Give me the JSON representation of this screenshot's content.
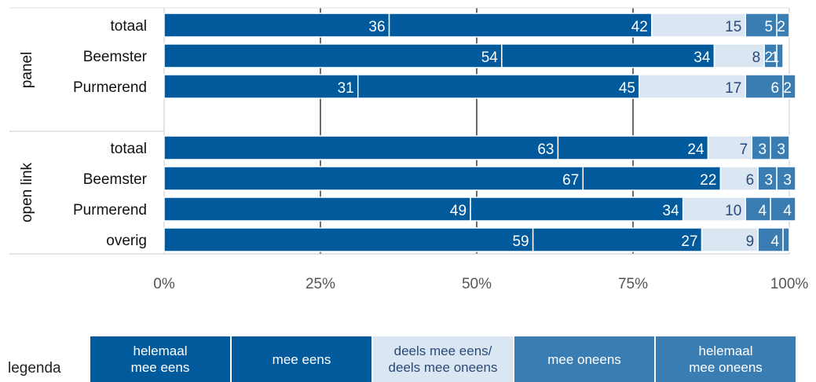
{
  "chart_data": {
    "type": "bar",
    "orientation": "horizontal",
    "stacked": true,
    "groups": [
      {
        "label": "panel",
        "categories": [
          "totaal",
          "Beemster",
          "Purmerend"
        ]
      },
      {
        "label": "open link",
        "categories": [
          "totaal",
          "Beemster",
          "Purmerend",
          "overig"
        ]
      }
    ],
    "rows": [
      {
        "group": "panel",
        "category": "totaal",
        "values": [
          36,
          42,
          15,
          5,
          2
        ]
      },
      {
        "group": "panel",
        "category": "Beemster",
        "values": [
          54,
          34,
          8,
          2,
          1
        ]
      },
      {
        "group": "panel",
        "category": "Purmerend",
        "values": [
          31,
          45,
          17,
          6,
          2
        ]
      },
      {
        "group": "open link",
        "category": "totaal",
        "values": [
          63,
          24,
          7,
          3,
          3
        ]
      },
      {
        "group": "open link",
        "category": "Beemster",
        "values": [
          67,
          22,
          6,
          3,
          3
        ]
      },
      {
        "group": "open link",
        "category": "Purmerend",
        "values": [
          49,
          34,
          10,
          4,
          4
        ]
      },
      {
        "group": "open link",
        "category": "overig",
        "values": [
          59,
          27,
          9,
          4,
          1
        ]
      }
    ],
    "data_labels": [
      [
        "36",
        "42",
        "15",
        "5",
        "2"
      ],
      [
        "54",
        "34",
        "8",
        "2",
        "1"
      ],
      [
        "31",
        "45",
        "17",
        "6",
        "2"
      ],
      [
        "63",
        "24",
        "7",
        "3",
        "3"
      ],
      [
        "67",
        "22",
        "6",
        "3",
        "3"
      ],
      [
        "49",
        "34",
        "10",
        "4",
        "4"
      ],
      [
        "59",
        "27",
        "9",
        "4",
        ""
      ]
    ],
    "series": [
      {
        "name": "helemaal mee eens",
        "color": "#005a9c"
      },
      {
        "name": "mee eens",
        "color": "#005a9c"
      },
      {
        "name": "deels mee eens/ deels mee oneens",
        "color": "#dae6f1"
      },
      {
        "name": "mee oneens",
        "color": "#3a7db3"
      },
      {
        "name": "helemaal mee oneens",
        "color": "#3a7db3"
      }
    ],
    "xlim": [
      0,
      100
    ],
    "x_ticks": [
      "0%",
      "25%",
      "50%",
      "75%",
      "100%"
    ],
    "grid": true
  },
  "legend": {
    "title": "legenda",
    "items": [
      {
        "label": "helemaal\nmee eens",
        "bg": "#005a9c",
        "fg": "#ffffff"
      },
      {
        "label": "mee eens",
        "bg": "#005a9c",
        "fg": "#ffffff"
      },
      {
        "label": "deels mee eens/\ndeels mee oneens",
        "bg": "#dae6f1",
        "fg": "#2a4a7a"
      },
      {
        "label": "mee oneens",
        "bg": "#3a7db3",
        "fg": "#ffffff"
      },
      {
        "label": "helemaal\nmee oneens",
        "bg": "#3a7db3",
        "fg": "#ffffff"
      }
    ]
  },
  "colors": {
    "label_on_dark": "#ffffff",
    "label_on_light": "#2a4a7a",
    "axis_tick_text": "#555555",
    "category_text": "#111111"
  }
}
